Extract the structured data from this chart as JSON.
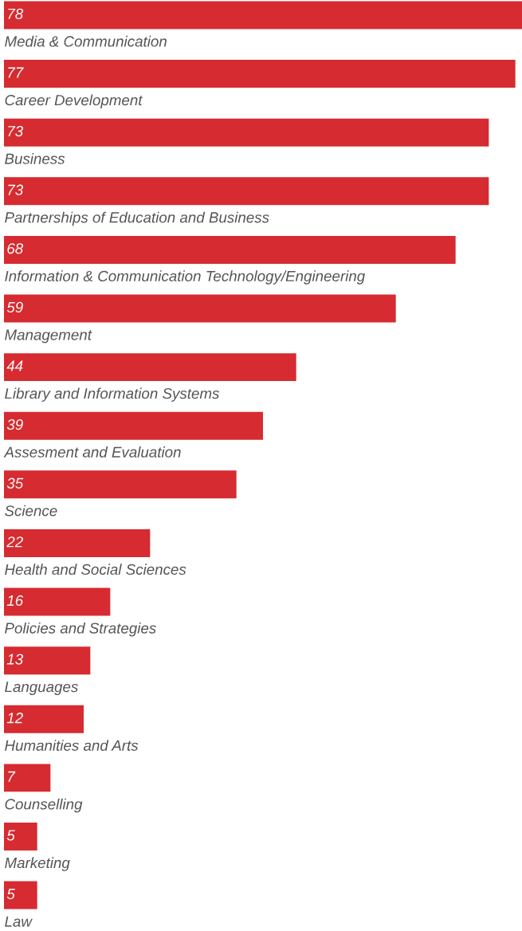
{
  "chart_data": {
    "type": "bar",
    "orientation": "horizontal",
    "categories": [
      "Media & Communication",
      "Career Development",
      "Business",
      "Partnerships of Education and Business",
      "Information & Communication Technology/Engineering",
      "Management",
      "Library and Information Systems",
      "Assesment and Evaluation",
      "Science",
      "Health and Social Sciences",
      "Policies and Strategies",
      "Languages",
      "Humanities and Arts",
      "Counselling",
      "Marketing",
      "Law"
    ],
    "values": [
      78,
      77,
      73,
      73,
      68,
      59,
      44,
      39,
      35,
      22,
      16,
      13,
      12,
      7,
      5,
      5
    ],
    "color": "#d62b30",
    "data_labels": true,
    "tick_labels": "y"
  }
}
